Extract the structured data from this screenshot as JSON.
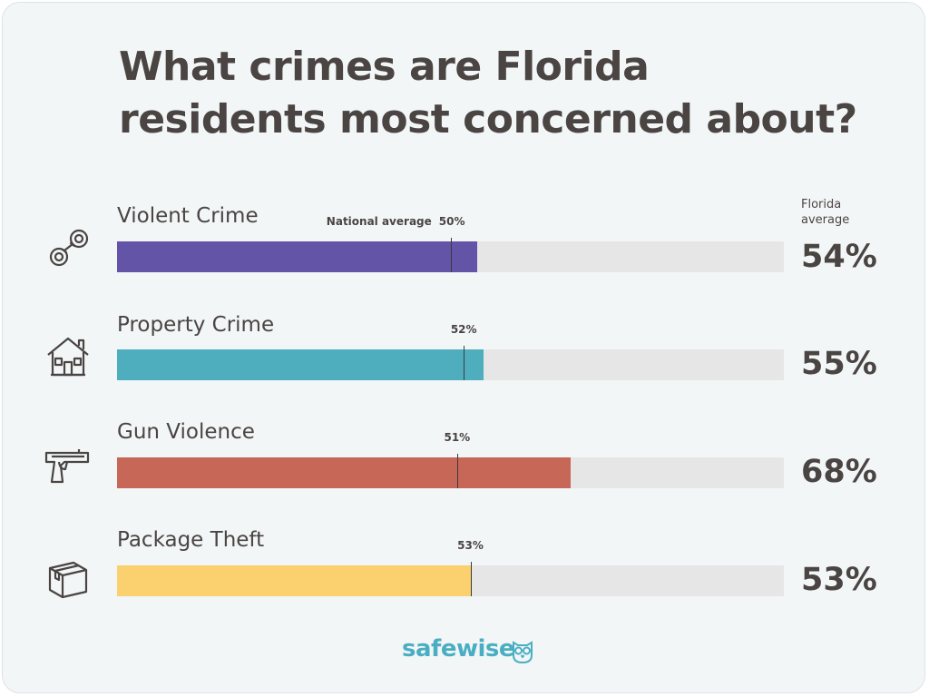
{
  "title_line1": "What crimes are Florida",
  "title_line2": "residents most concerned about?",
  "florida_header_line1": "Florida",
  "florida_header_line2": "average",
  "national_prefix": "National average",
  "logo_text_part1": "safe",
  "logo_text_part2": "wise",
  "colors": {
    "violent": "#6454a8",
    "property": "#4eaebe",
    "gun": "#c66758",
    "package": "#fbd06e",
    "track": "#e6e6e6"
  },
  "chart_data": {
    "type": "bar",
    "title": "What crimes are Florida residents most concerned about?",
    "xlim": [
      0,
      100
    ],
    "categories": [
      "Violent Crime",
      "Property Crime",
      "Gun Violence",
      "Package Theft"
    ],
    "series": [
      {
        "name": "Florida average",
        "values": [
          54,
          55,
          68,
          53
        ]
      },
      {
        "name": "National average",
        "values": [
          50,
          52,
          51,
          53
        ]
      }
    ],
    "rows": [
      {
        "label": "Violent Crime",
        "florida": 54,
        "florida_label": "54%",
        "national": 50,
        "national_label": "50%",
        "icon": "handcuffs-icon",
        "color_key": "violent"
      },
      {
        "label": "Property Crime",
        "florida": 55,
        "florida_label": "55%",
        "national": 52,
        "national_label": "52%",
        "icon": "house-icon",
        "color_key": "property"
      },
      {
        "label": "Gun Violence",
        "florida": 68,
        "florida_label": "68%",
        "national": 51,
        "national_label": "51%",
        "icon": "gun-icon",
        "color_key": "gun"
      },
      {
        "label": "Package Theft",
        "florida": 53,
        "florida_label": "53%",
        "national": 53,
        "national_label": "53%",
        "icon": "package-icon",
        "color_key": "package"
      }
    ]
  }
}
